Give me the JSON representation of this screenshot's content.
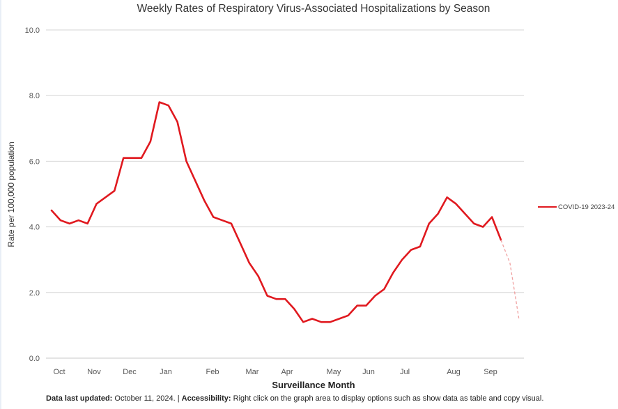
{
  "chart_data": {
    "type": "line",
    "title": "Weekly Rates of Respiratory Virus-Associated Hospitalizations by Season",
    "xlabel": "Surveillance Month",
    "ylabel": "Rate per 100,000 population",
    "ylim": [
      0,
      10
    ],
    "yticks": [
      "0.0",
      "2.0",
      "4.0",
      "6.0",
      "8.0",
      "10.0"
    ],
    "months": [
      "Oct",
      "Nov",
      "Dec",
      "Jan",
      "Feb",
      "Mar",
      "Apr",
      "May",
      "Jun",
      "Jul",
      "Aug",
      "Sep"
    ],
    "grid": true,
    "legend_position": "right",
    "series": [
      {
        "name": "COVID-19 2023-24",
        "color": "#e0191f",
        "values": [
          4.5,
          4.2,
          4.1,
          4.2,
          4.1,
          4.7,
          4.9,
          5.1,
          6.1,
          6.1,
          6.1,
          6.6,
          7.8,
          7.7,
          7.2,
          6.0,
          5.4,
          4.8,
          4.3,
          4.2,
          4.1,
          3.5,
          2.9,
          2.5,
          1.9,
          1.8,
          1.8,
          1.5,
          1.1,
          1.2,
          1.1,
          1.1,
          1.2,
          1.3,
          1.6,
          1.6,
          1.9,
          2.1,
          2.6,
          3.0,
          3.3,
          3.4,
          4.1,
          4.4,
          4.9,
          4.7,
          4.4,
          4.1,
          4.0,
          4.3,
          3.6
        ],
        "provisional_values": [
          3.6,
          2.9,
          1.2
        ]
      }
    ]
  },
  "footer": {
    "updated_label": "Data last updated:",
    "updated_value": " October 11, 2024. | ",
    "accessibility_label": "Accessibility:",
    "accessibility_text": " Right click on the graph area to display options such as show data as table and copy visual."
  }
}
